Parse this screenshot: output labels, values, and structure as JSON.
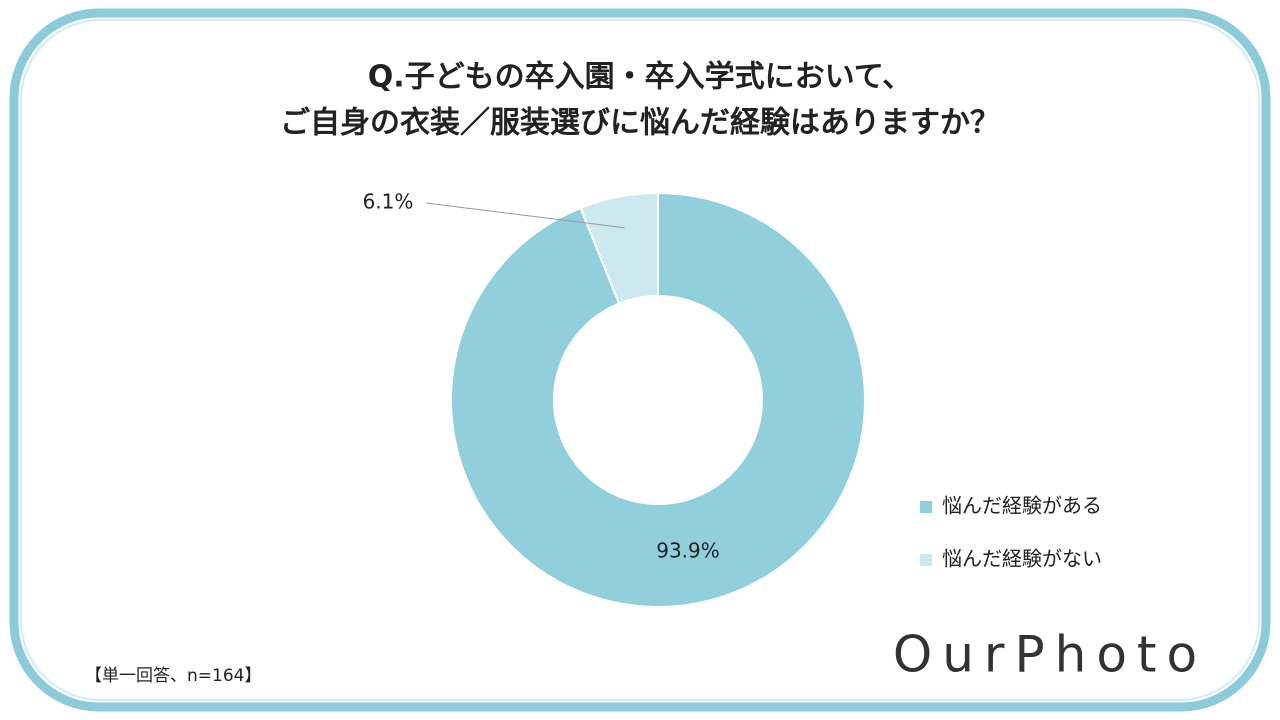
{
  "chart_data": {
    "type": "donut",
    "title": [
      "Q.子どもの卒入園・卒入学式において、",
      "ご自身の衣装／服装選びに悩んだ経験はありますか？"
    ],
    "series": [
      {
        "name": "悩んだ経験がある",
        "color": "#92cfdd",
        "values": [
          93.9
        ],
        "value_labels": [
          "93.9%"
        ]
      },
      {
        "name": "悩んだ経験がない",
        "color": "#cce9f0",
        "values": [
          6.1
        ],
        "value_labels": [
          "6.1%"
        ]
      }
    ]
  },
  "note": "【単一回答、n=164】",
  "logo": "OurPhoto"
}
